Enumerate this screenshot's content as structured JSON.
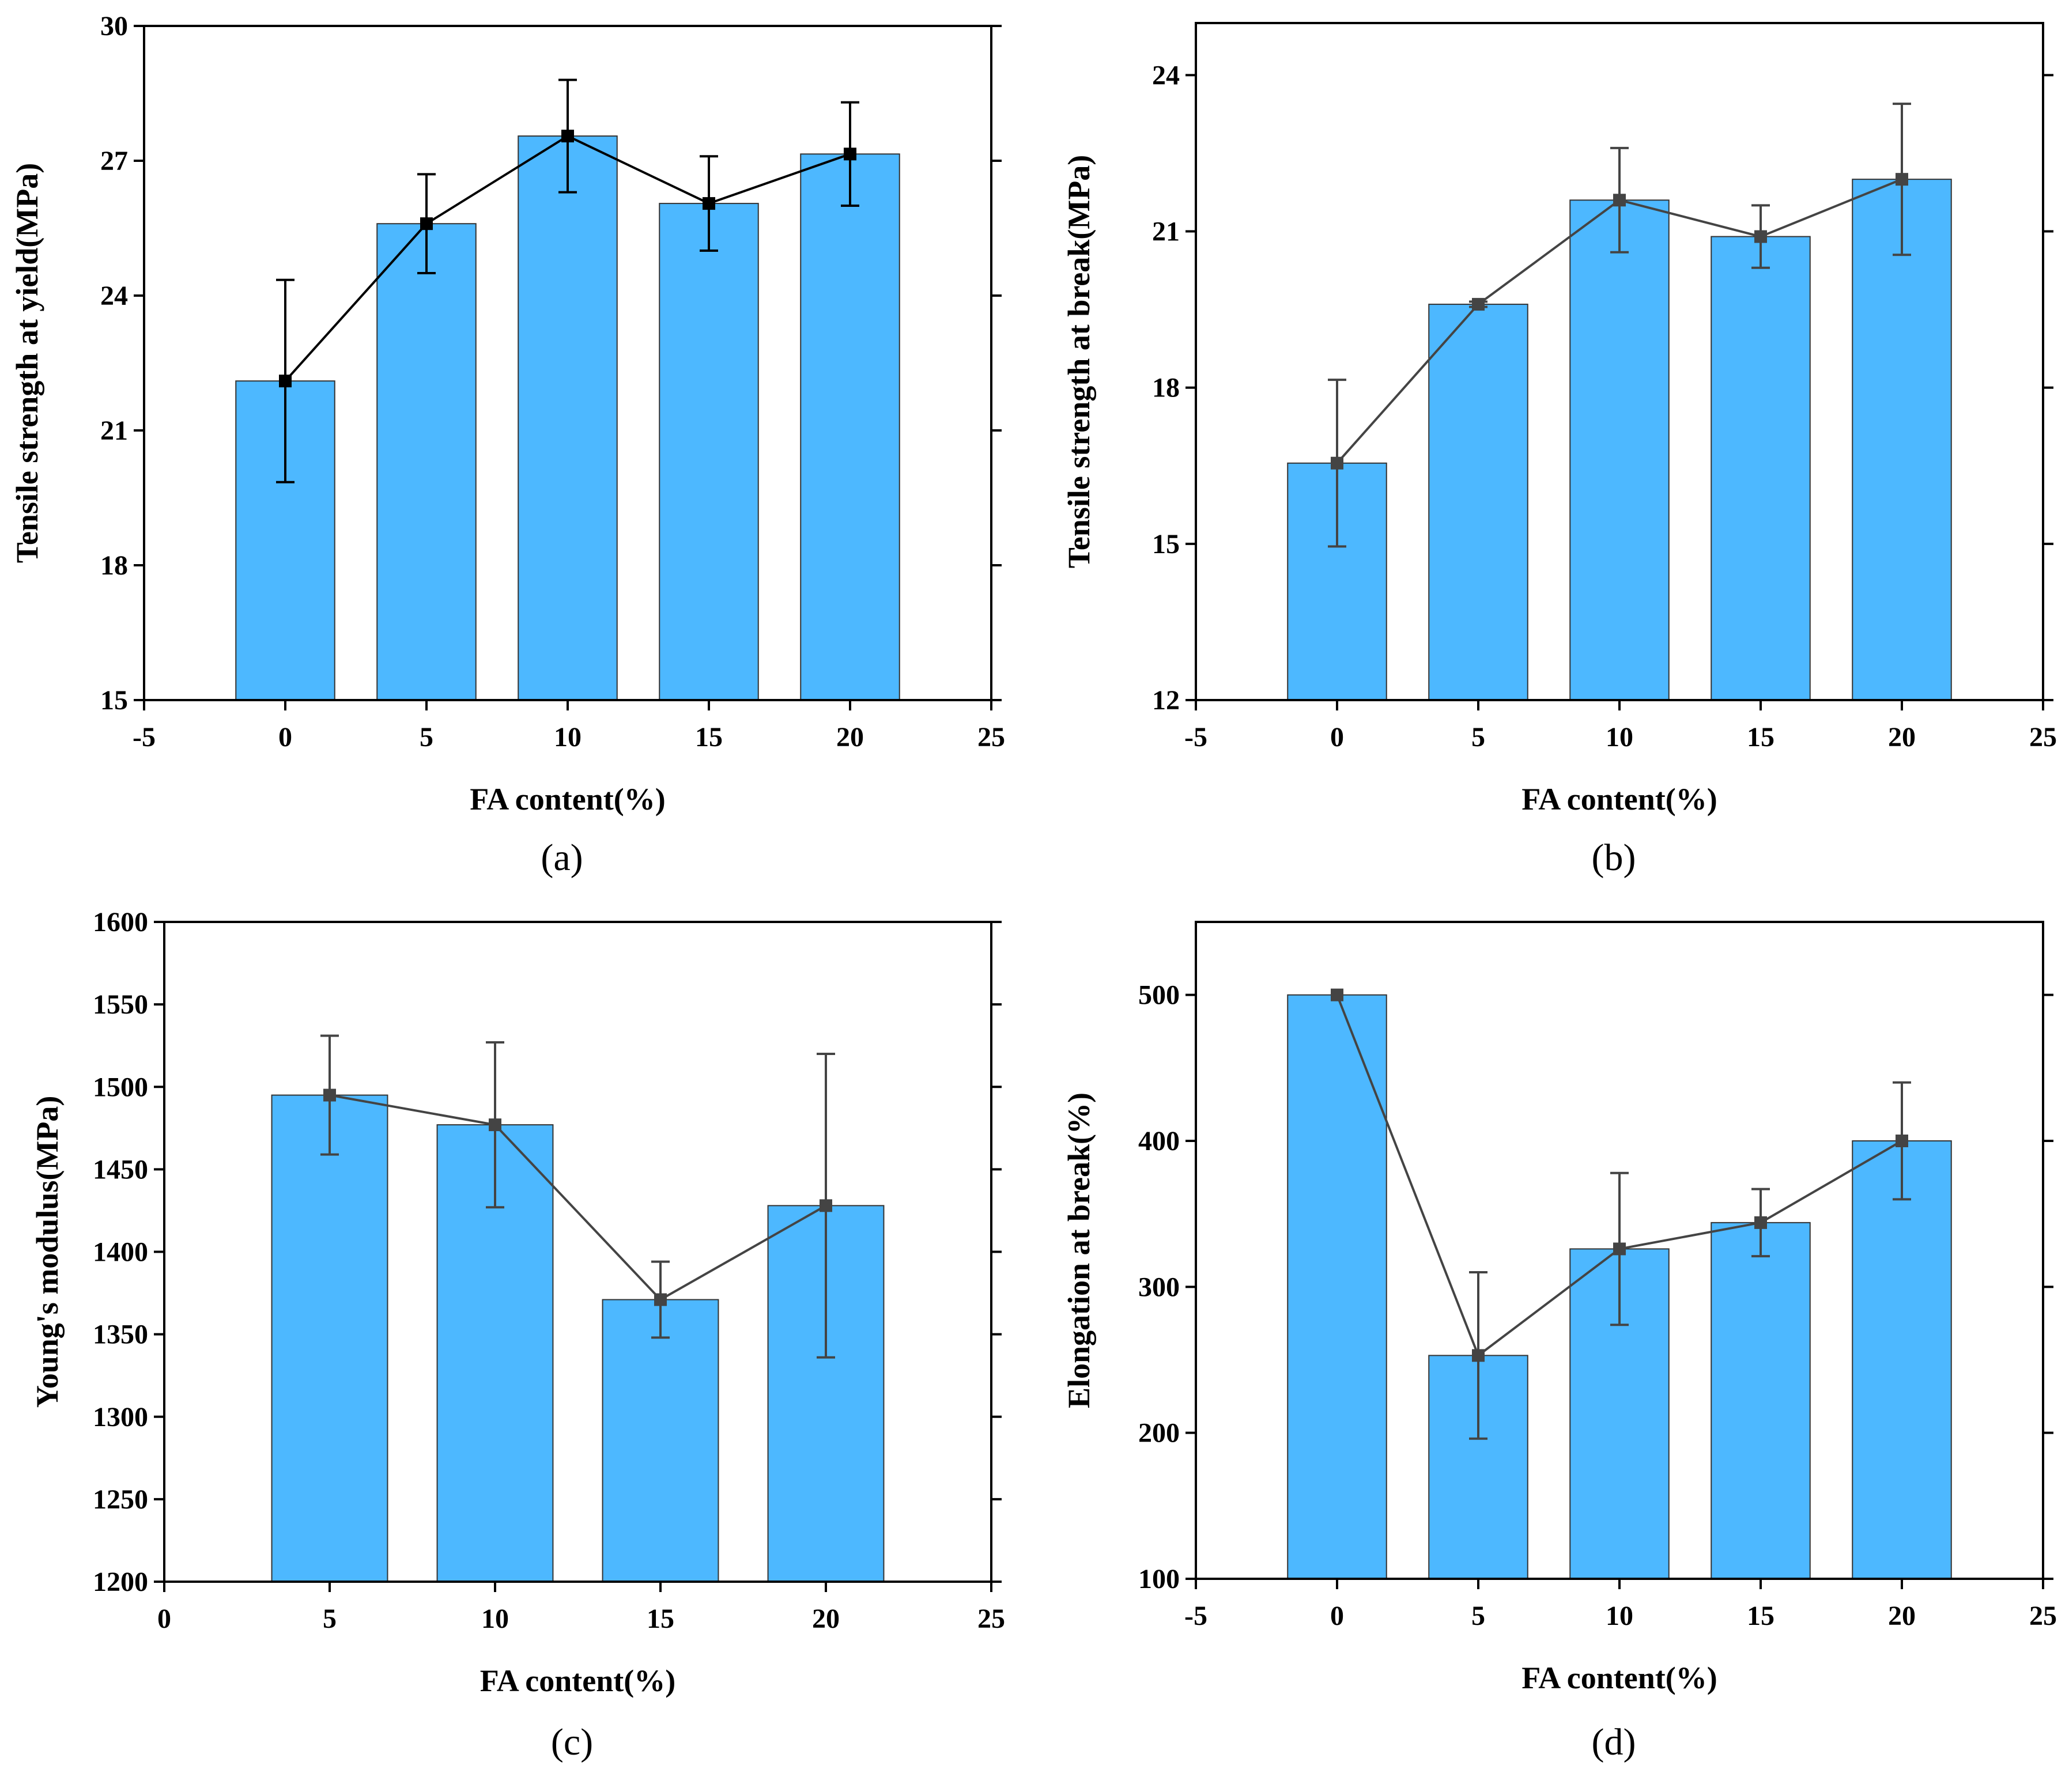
{
  "colors": {
    "bar": "#4db8ff",
    "bar_stroke": "#333333",
    "line": "#444444",
    "line_a": "#000000",
    "axis": "#000000"
  },
  "chart_data": [
    {
      "id": "a",
      "panel_label": "(a)",
      "type": "bar",
      "xlabel": "FA content(%)",
      "ylabel": "Tensile strength at yield(MPa)",
      "xlim": [
        -5,
        25
      ],
      "ylim": [
        15,
        30
      ],
      "x_ticks": [
        "-5",
        "0",
        "5",
        "10",
        "15",
        "20",
        "25"
      ],
      "y_ticks": [
        "15",
        "18",
        "21",
        "24",
        "27",
        "30"
      ],
      "x": [
        0,
        5,
        10,
        15,
        20
      ],
      "values": [
        22.1,
        25.6,
        27.55,
        26.05,
        27.15
      ],
      "errors": [
        2.25,
        1.1,
        1.25,
        1.05,
        1.15
      ],
      "bar_width": 3.5,
      "line_color_key": "line_a"
    },
    {
      "id": "b",
      "panel_label": "(b)",
      "type": "bar",
      "xlabel": "FA content(%)",
      "ylabel": "Tensile strength at break(MPa)",
      "xlim": [
        -5,
        25
      ],
      "ylim": [
        12,
        25
      ],
      "x_ticks": [
        "-5",
        "0",
        "5",
        "10",
        "15",
        "20",
        "25"
      ],
      "y_ticks": [
        "12",
        "15",
        "18",
        "21",
        "24"
      ],
      "x": [
        0,
        5,
        10,
        15,
        20
      ],
      "values": [
        16.55,
        19.6,
        21.6,
        20.9,
        22.0
      ],
      "errors": [
        1.6,
        0.05,
        1.0,
        0.6,
        1.45
      ],
      "bar_width": 3.5,
      "line_color_key": "line"
    },
    {
      "id": "c",
      "panel_label": "(c)",
      "type": "bar",
      "xlabel": "FA content(%)",
      "ylabel": "Young's modulus(MPa)",
      "xlim": [
        0,
        25
      ],
      "ylim": [
        1200,
        1600
      ],
      "x_ticks": [
        "0",
        "5",
        "10",
        "15",
        "20",
        "25"
      ],
      "y_ticks": [
        "1200",
        "1250",
        "1300",
        "1350",
        "1400",
        "1450",
        "1500",
        "1550",
        "1600"
      ],
      "x": [
        5,
        10,
        15,
        20
      ],
      "values": [
        1495,
        1477,
        1371,
        1428
      ],
      "errors": [
        36,
        50,
        23,
        92
      ],
      "bar_width": 3.5,
      "line_color_key": "line"
    },
    {
      "id": "d",
      "panel_label": "(d)",
      "type": "bar",
      "xlabel": "FA content(%)",
      "ylabel": "Elongation at break(%)",
      "xlim": [
        -5,
        25
      ],
      "ylim": [
        100,
        550
      ],
      "x_ticks": [
        "-5",
        "0",
        "5",
        "10",
        "15",
        "20",
        "25"
      ],
      "y_ticks": [
        "100",
        "200",
        "300",
        "400",
        "500"
      ],
      "x": [
        0,
        5,
        10,
        15,
        20
      ],
      "values": [
        500,
        253,
        326,
        344,
        400
      ],
      "errors": [
        0,
        57,
        52,
        23,
        40
      ],
      "bar_width": 3.5,
      "line_color_key": "line"
    }
  ]
}
